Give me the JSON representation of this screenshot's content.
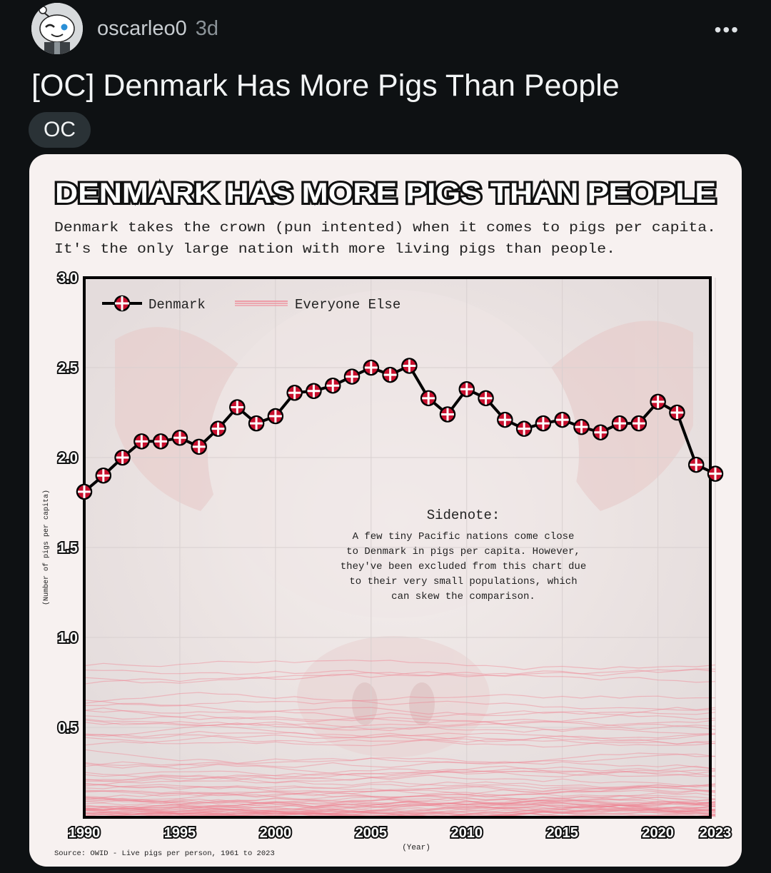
{
  "post": {
    "username": "oscarleo0",
    "age": "3d",
    "more_label": "•••",
    "title": "[OC] Denmark Has More Pigs Than People",
    "flair": "OC"
  },
  "infographic": {
    "headline": "DENMARK HAS MORE PIGS THAN PEOPLE",
    "subtitle_line1": "Denmark takes the crown (pun intented) when it comes to pigs per capita.",
    "subtitle_line2": "It's the only large nation with more living pigs than people.",
    "sidenote_title": "Sidenote:",
    "sidenote_lines": [
      "A few tiny Pacific nations come close",
      "to Denmark in pigs per capita. However,",
      "they've been excluded from this chart due",
      "to their very small populations, which",
      "can skew the comparison."
    ],
    "source": "Source: OWID - Live pigs per person, 1961 to 2023"
  },
  "chart_data": {
    "type": "line",
    "xlabel": "(Year)",
    "ylabel": "(Number of pigs per capita)",
    "xlim": [
      1990,
      2023
    ],
    "ylim": [
      0,
      3.0
    ],
    "x_ticks": [
      1990,
      1995,
      2000,
      2005,
      2010,
      2015,
      2020,
      2023
    ],
    "x_tick_labels": [
      "1990",
      "1995",
      "2000",
      "2005",
      "2010",
      "2015",
      "2020",
      "2023"
    ],
    "y_ticks": [
      0.5,
      1.0,
      1.5,
      2.0,
      2.5,
      3.0
    ],
    "y_tick_labels": [
      "0.5",
      "1.0",
      "1.5",
      "2.0",
      "2.5",
      "3.0"
    ],
    "grid": true,
    "legend_position": "top-left",
    "series": [
      {
        "name": "Denmark",
        "color": "#c8102e",
        "x": [
          1990,
          1991,
          1992,
          1993,
          1994,
          1995,
          1996,
          1997,
          1998,
          1999,
          2000,
          2001,
          2002,
          2003,
          2004,
          2005,
          2006,
          2007,
          2008,
          2009,
          2010,
          2011,
          2012,
          2013,
          2014,
          2015,
          2016,
          2017,
          2018,
          2019,
          2020,
          2021,
          2022,
          2023
        ],
        "values": [
          1.81,
          1.9,
          2.0,
          2.09,
          2.09,
          2.11,
          2.06,
          2.16,
          2.28,
          2.19,
          2.23,
          2.36,
          2.37,
          2.4,
          2.45,
          2.5,
          2.46,
          2.51,
          2.33,
          2.24,
          2.38,
          2.33,
          2.21,
          2.16,
          2.19,
          2.21,
          2.17,
          2.14,
          2.19,
          2.19,
          2.31,
          2.25,
          1.96,
          1.91
        ]
      },
      {
        "name": "Everyone Else",
        "color": "#f08090",
        "values_range": [
          0,
          0.9
        ]
      }
    ]
  }
}
